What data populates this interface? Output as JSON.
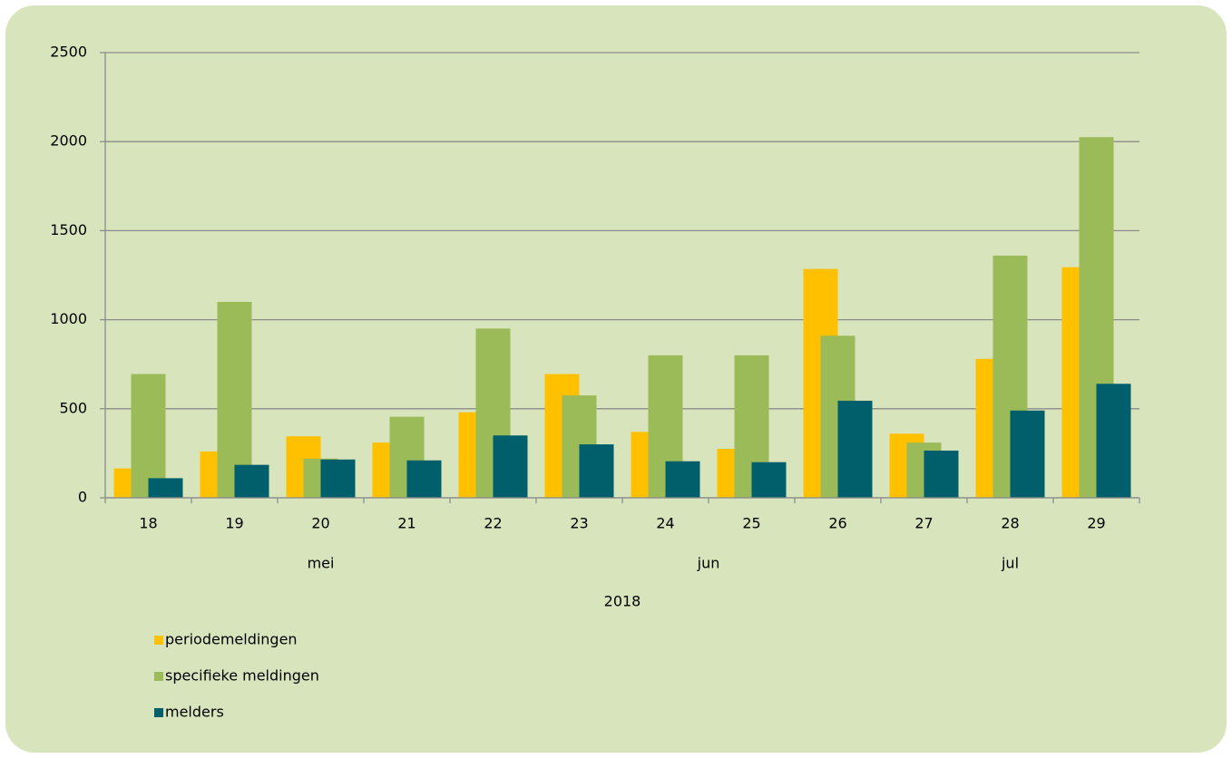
{
  "chart_data": {
    "type": "bar",
    "categories": [
      "18",
      "19",
      "20",
      "21",
      "22",
      "23",
      "24",
      "25",
      "26",
      "27",
      "28",
      "29"
    ],
    "month_groups": [
      {
        "label": "mei",
        "count": 5
      },
      {
        "label": "jun",
        "count": 4
      },
      {
        "label": "jul",
        "count": 3
      }
    ],
    "year_label": "2018",
    "series": [
      {
        "name": "periodemeldingen",
        "color": "#ffc000",
        "values": [
          165,
          260,
          345,
          310,
          480,
          695,
          370,
          275,
          1285,
          360,
          780,
          1295
        ]
      },
      {
        "name": "specifieke meldingen",
        "color": "#9bbb59",
        "values": [
          695,
          1100,
          220,
          455,
          950,
          575,
          800,
          800,
          910,
          310,
          1360,
          2025
        ]
      },
      {
        "name": "melders",
        "color": "#005f6b",
        "values": [
          110,
          185,
          215,
          210,
          350,
          300,
          205,
          200,
          545,
          265,
          490,
          640
        ]
      }
    ],
    "ylim": [
      0,
      2500
    ],
    "yticks": [
      0,
      500,
      1000,
      1500,
      2000,
      2500
    ],
    "grid": true,
    "legend": "bottom-left"
  }
}
